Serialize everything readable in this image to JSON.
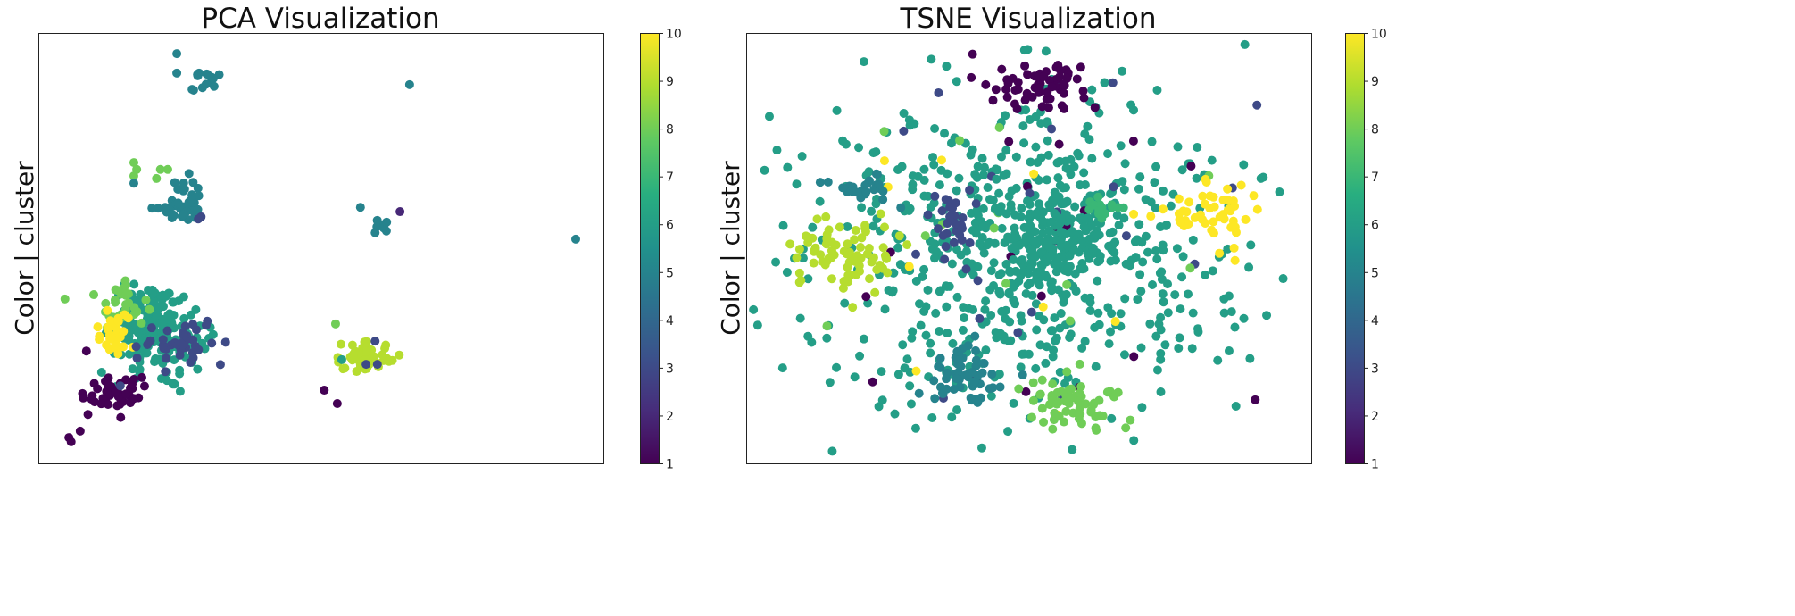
{
  "chart_data": [
    {
      "type": "scatter",
      "title": "PCA Visualization",
      "xlabel": "",
      "ylabel": "Color | cluster",
      "xlim": [
        0,
        100
      ],
      "ylim": [
        0,
        100
      ],
      "axis_ticks": false,
      "grid": false,
      "colormap": "viridis",
      "colorbar": {
        "min": 1,
        "max": 10,
        "ticks": [
          "1",
          "2",
          "3",
          "4",
          "5",
          "6",
          "7",
          "8",
          "9",
          "10"
        ],
        "placement": "right"
      },
      "clusters": [
        {
          "cx": 29.2,
          "cy": 89.4,
          "sx": 1.5,
          "sy": 1.5,
          "n": 12,
          "c": 5
        },
        {
          "cx": 25.6,
          "cy": 60.0,
          "sx": 2.2,
          "sy": 3.0,
          "n": 35,
          "c": 5
        },
        {
          "cx": 60.8,
          "cy": 55.8,
          "sx": 0.6,
          "sy": 0.8,
          "n": 8,
          "c": 5
        },
        {
          "cx": 21.6,
          "cy": 29.3,
          "sx": 4.0,
          "sy": 4.0,
          "n": 180,
          "c": 6
        },
        {
          "cx": 18.6,
          "cy": 36.1,
          "sx": 2.5,
          "sy": 2.5,
          "n": 40,
          "c": 6
        },
        {
          "cx": 15.3,
          "cy": 37.1,
          "sx": 2.0,
          "sy": 3.0,
          "n": 30,
          "c": 8
        },
        {
          "cx": 13.7,
          "cy": 30.5,
          "sx": 2.0,
          "sy": 2.5,
          "n": 35,
          "c": 10
        },
        {
          "cx": 25.6,
          "cy": 27.8,
          "sx": 3.5,
          "sy": 2.5,
          "n": 40,
          "c": 3
        },
        {
          "cx": 13.4,
          "cy": 16.4,
          "sx": 2.5,
          "sy": 2.2,
          "n": 45,
          "c": 1
        },
        {
          "cx": 58.0,
          "cy": 24.7,
          "sx": 2.3,
          "sy": 1.6,
          "n": 55,
          "c": 9
        }
      ],
      "points": [
        [
          24.5,
          95.2,
          5
        ],
        [
          24.5,
          90.7,
          5
        ],
        [
          27.2,
          86.9,
          5
        ],
        [
          31.1,
          87.6,
          5
        ],
        [
          65.7,
          88.0,
          5
        ],
        [
          16.9,
          69.9,
          8
        ],
        [
          17.4,
          68.3,
          8
        ],
        [
          16.9,
          66.8,
          8
        ],
        [
          21.6,
          68.3,
          8
        ],
        [
          20.9,
          66.2,
          8
        ],
        [
          22.9,
          68.3,
          8
        ],
        [
          16.9,
          65.1,
          5
        ],
        [
          20.1,
          59.3,
          5
        ],
        [
          21.2,
          59.3,
          5
        ],
        [
          28.8,
          57.3,
          3
        ],
        [
          28.3,
          56.8,
          3
        ],
        [
          57.0,
          59.5,
          5
        ],
        [
          64.0,
          58.5,
          2
        ],
        [
          95.1,
          52.1,
          5
        ],
        [
          4.7,
          38.2,
          8
        ],
        [
          9.8,
          39.2,
          8
        ],
        [
          8.5,
          26.1,
          1
        ],
        [
          5.4,
          6.0,
          1
        ],
        [
          5.8,
          5.0,
          1
        ],
        [
          7.4,
          7.5,
          1
        ],
        [
          14.5,
          18.0,
          3
        ],
        [
          16.9,
          19.5,
          1
        ],
        [
          59.6,
          28.4,
          3
        ],
        [
          60.0,
          23.0,
          3
        ],
        [
          58.0,
          23.0,
          3
        ],
        [
          52.6,
          32.4,
          8
        ],
        [
          53.7,
          24.1,
          6
        ],
        [
          50.6,
          17.0,
          1
        ],
        [
          52.9,
          13.9,
          1
        ]
      ]
    },
    {
      "type": "scatter",
      "title": "TSNE Visualization",
      "xlabel": "",
      "ylabel": "Color | cluster",
      "xlim": [
        0,
        100
      ],
      "ylim": [
        0,
        100
      ],
      "axis_ticks": false,
      "grid": false,
      "colormap": "viridis",
      "colorbar": {
        "min": 1,
        "max": 10,
        "ticks": [
          "1",
          "2",
          "3",
          "4",
          "5",
          "6",
          "7",
          "8",
          "9",
          "10"
        ],
        "placement": "right"
      },
      "clusters": [
        {
          "cx": 49.6,
          "cy": 49.6,
          "sx": 19,
          "sy": 19,
          "n": 650,
          "c": 6
        },
        {
          "cx": 49.6,
          "cy": 49.6,
          "sx": 18,
          "sy": 18,
          "n": 20,
          "c": 1
        },
        {
          "cx": 49.6,
          "cy": 49.6,
          "sx": 18,
          "sy": 18,
          "n": 20,
          "c": 3
        },
        {
          "cx": 49.6,
          "cy": 49.6,
          "sx": 20,
          "sy": 20,
          "n": 12,
          "c": 10
        },
        {
          "cx": 49.6,
          "cy": 49.6,
          "sx": 20,
          "sy": 20,
          "n": 15,
          "c": 8
        },
        {
          "cx": 54.3,
          "cy": 53.7,
          "sx": 6,
          "sy": 6,
          "n": 150,
          "c": 6
        },
        {
          "cx": 52.8,
          "cy": 88.0,
          "sx": 5,
          "sy": 3,
          "n": 60,
          "c": 1
        },
        {
          "cx": 17.2,
          "cy": 48.5,
          "sx": 4.5,
          "sy": 4,
          "n": 80,
          "c": 9
        },
        {
          "cx": 82.0,
          "cy": 58.9,
          "sx": 4.5,
          "sy": 3.5,
          "n": 50,
          "c": 10
        },
        {
          "cx": 57.5,
          "cy": 13.3,
          "sx": 4.5,
          "sy": 3.5,
          "n": 70,
          "c": 8
        },
        {
          "cx": 37.8,
          "cy": 20.5,
          "sx": 3.5,
          "sy": 3.5,
          "n": 60,
          "c": 5
        },
        {
          "cx": 36.2,
          "cy": 54.8,
          "sx": 2,
          "sy": 4,
          "n": 30,
          "c": 3
        },
        {
          "cx": 20.4,
          "cy": 64.1,
          "sx": 3,
          "sy": 2,
          "n": 25,
          "c": 5
        },
        {
          "cx": 63.8,
          "cy": 58.9,
          "sx": 2,
          "sy": 1.5,
          "n": 15,
          "c": 7
        }
      ],
      "points": []
    }
  ]
}
